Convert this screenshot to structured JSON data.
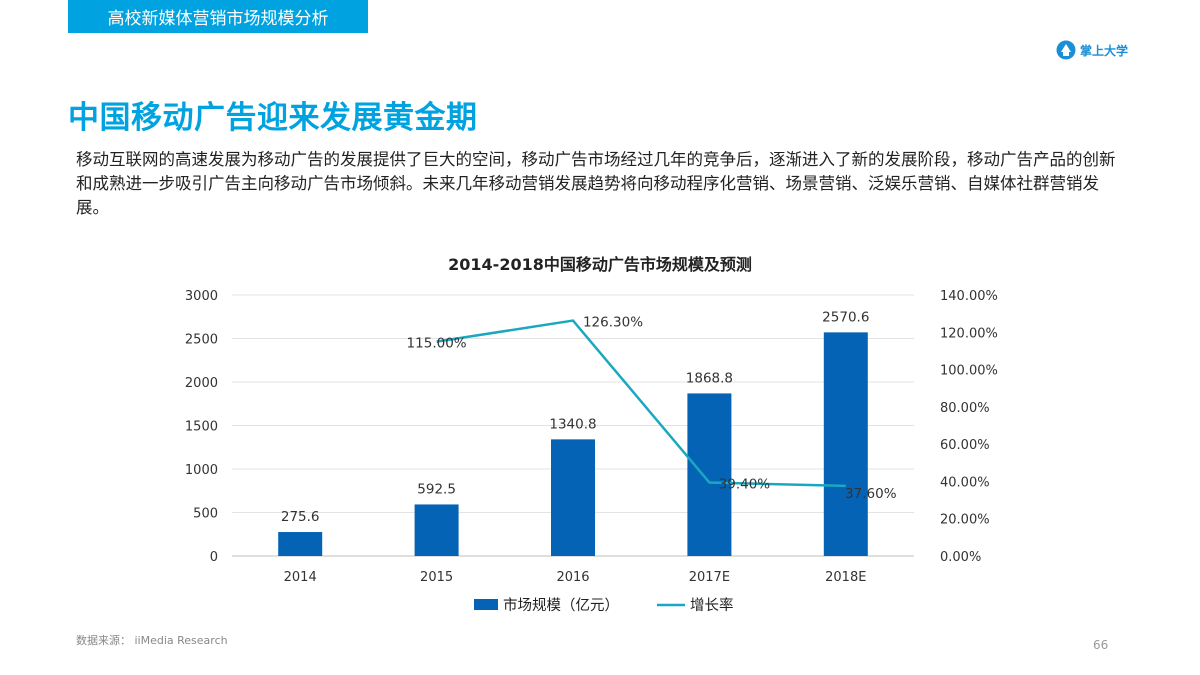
{
  "header": {
    "section_title": "高校新媒体营销市场规模分析"
  },
  "brand": {
    "name": "掌上大学",
    "logo_icon": "university-logo-icon",
    "color": "#1a8fd6"
  },
  "page": {
    "title": "中国移动广告迎来发展黄金期",
    "intro": "移动互联网的高速发展为移动广告的发展提供了巨大的空间，移动广告市场经过几年的竞争后，逐渐进入了新的发展阶段，移动广告产品的创新和成熟进一步吸引广告主向移动广告市场倾斜。未来几年移动营销发展趋势将向移动程序化营销、场景营销、泛娱乐营销、自媒体社群营销发展。",
    "source": "数据来源： iiMedia Research",
    "page_number": "66"
  },
  "chart_data": {
    "type": "bar",
    "title": "2014-2018中国移动广告市场规模及预测",
    "categories": [
      "2014",
      "2015",
      "2016",
      "2017E",
      "2018E"
    ],
    "series": [
      {
        "name": "市场规模（亿元）",
        "kind": "bar",
        "axis": "left",
        "color": "#0563b5",
        "values": [
          275.6,
          592.5,
          1340.8,
          1868.8,
          2570.6
        ],
        "labels": [
          "275.6",
          "592.5",
          "1340.8",
          "1868.8",
          "2570.6"
        ]
      },
      {
        "name": "增长率",
        "kind": "line",
        "axis": "right",
        "color": "#1aa8c0",
        "values": [
          null,
          115.0,
          126.3,
          39.4,
          37.6
        ],
        "labels": [
          "",
          "115.00%",
          "126.30%",
          "39.40%",
          "37.60%"
        ]
      }
    ],
    "left_axis": {
      "ylim": [
        0,
        3000
      ],
      "ticks": [
        "0",
        "500",
        "1000",
        "1500",
        "2000",
        "2500",
        "3000"
      ]
    },
    "right_axis": {
      "ylim": [
        0,
        140
      ],
      "ticks": [
        "0.00%",
        "20.00%",
        "40.00%",
        "60.00%",
        "80.00%",
        "100.00%",
        "120.00%",
        "140.00%"
      ]
    },
    "grid": true,
    "legend_position": "bottom"
  }
}
